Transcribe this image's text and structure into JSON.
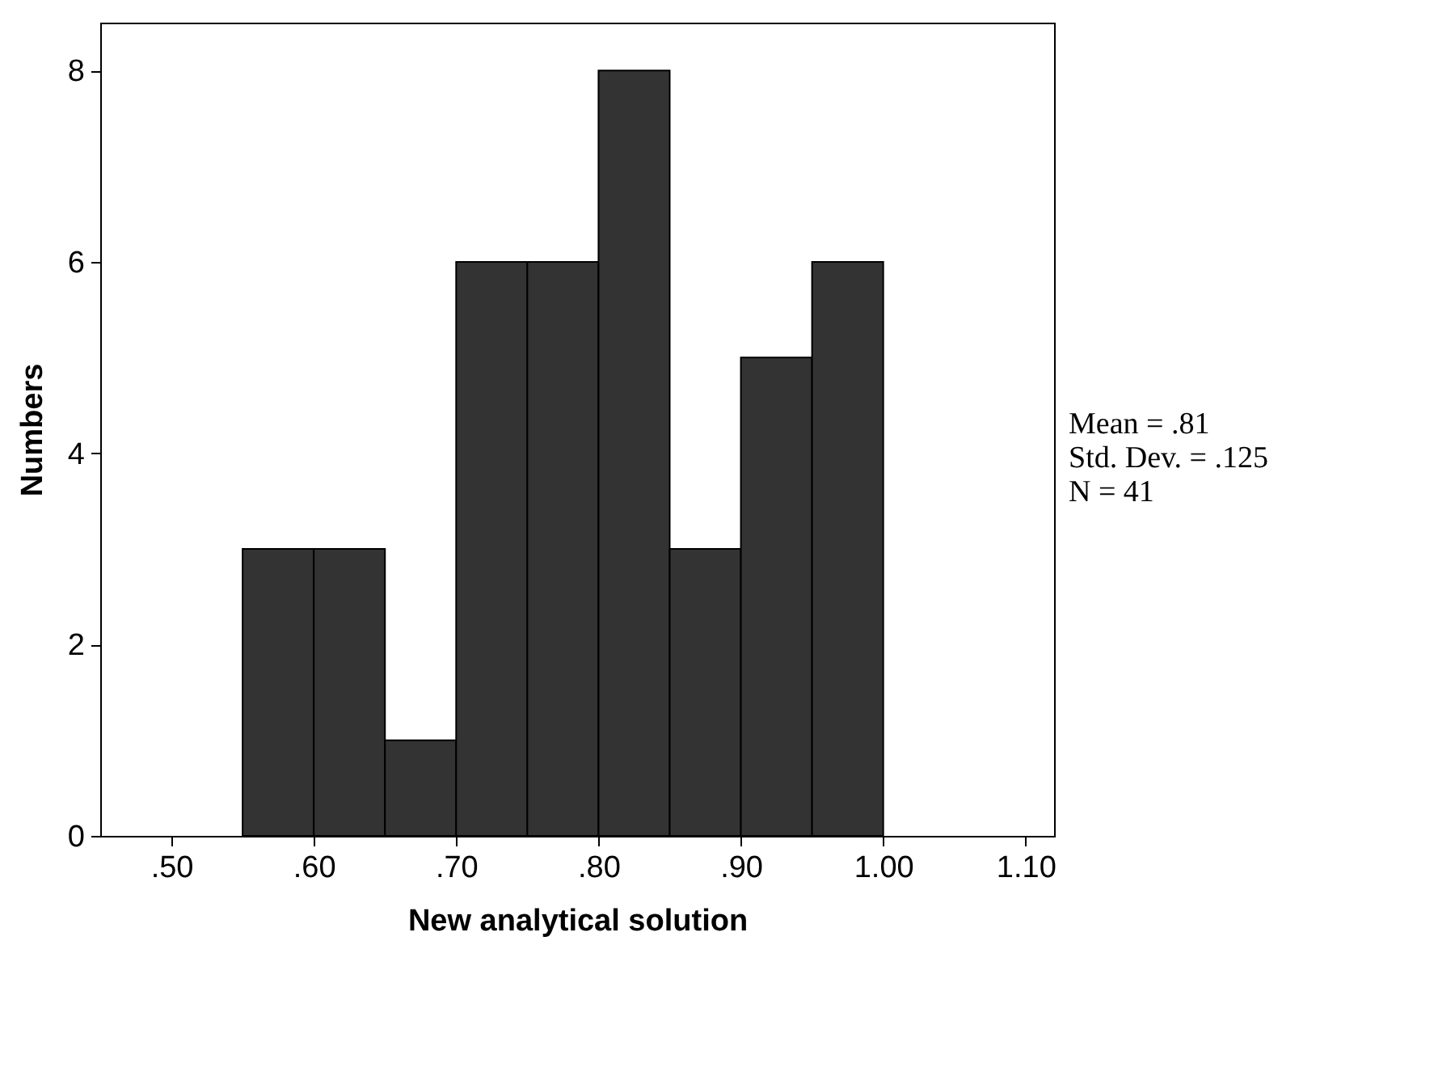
{
  "chart_data": {
    "type": "histogram",
    "xlabel": "New analytical solution",
    "ylabel": "Numbers",
    "bins": [
      0.55,
      0.6,
      0.65,
      0.7,
      0.75,
      0.8,
      0.85,
      0.9,
      0.95,
      1.0
    ],
    "values": [
      3,
      3,
      1,
      6,
      6,
      8,
      3,
      5,
      6
    ],
    "color": "#333333",
    "xlim": [
      0.45,
      1.12
    ],
    "ylim": [
      0,
      8.5
    ],
    "xticks": [
      {
        "value": 0.5,
        "label": ".50"
      },
      {
        "value": 0.6,
        "label": ".60"
      },
      {
        "value": 0.7,
        "label": ".70"
      },
      {
        "value": 0.8,
        "label": ".80"
      },
      {
        "value": 0.9,
        "label": ".90"
      },
      {
        "value": 1.0,
        "label": "1.00"
      },
      {
        "value": 1.1,
        "label": "1.10"
      }
    ],
    "yticks": [
      0,
      2,
      4,
      6,
      8
    ],
    "grid": false,
    "annotations": [
      "Mean = .81",
      "Std. Dev. = .125",
      "N = 41"
    ]
  }
}
